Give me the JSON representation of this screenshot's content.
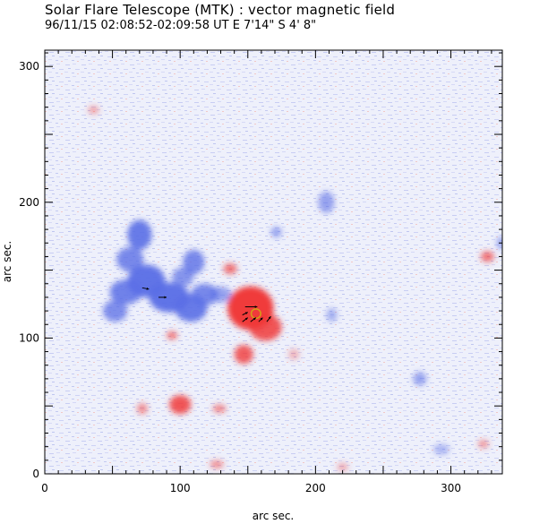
{
  "header": {
    "title": "Solar Flare Telescope (MTK) : vector magnetic field",
    "subtitle": "96/11/15   02:08:52-02:09:58 UT     E 7'14\"   S 4' 8\""
  },
  "chart_data": {
    "type": "heatmap",
    "title": "Solar Flare Telescope (MTK) : vector magnetic field",
    "subtitle": "96/11/15   02:08:52-02:09:58 UT     E 7'14\"   S 4' 8\"",
    "xlabel": "arc sec.",
    "ylabel": "arc sec.",
    "xlim": [
      0,
      338
    ],
    "ylim": [
      0,
      312
    ],
    "x_ticks": [
      0,
      100,
      200,
      300
    ],
    "y_ticks": [
      0,
      100,
      200,
      300
    ],
    "x_tick_labels": [
      "0",
      "100",
      "200",
      "300"
    ],
    "y_tick_labels": [
      "0",
      "100",
      "200",
      "300"
    ],
    "colors": {
      "negative_polarity": "#5a6ee6",
      "positive_polarity": "#f03a3a",
      "background_noise": "#c9cff2",
      "vector_arrow": "#000000",
      "contour": "#d4a017"
    },
    "polarity_regions": [
      {
        "polarity": "negative",
        "x": 70,
        "y": 176,
        "rx": 9,
        "ry": 11,
        "strength": 0.9
      },
      {
        "polarity": "negative",
        "x": 63,
        "y": 158,
        "rx": 10,
        "ry": 9,
        "strength": 0.8
      },
      {
        "polarity": "negative",
        "x": 75,
        "y": 142,
        "rx": 14,
        "ry": 12,
        "strength": 0.95
      },
      {
        "polarity": "negative",
        "x": 60,
        "y": 134,
        "rx": 12,
        "ry": 9,
        "strength": 0.85
      },
      {
        "polarity": "negative",
        "x": 52,
        "y": 120,
        "rx": 9,
        "ry": 8,
        "strength": 0.75
      },
      {
        "polarity": "negative",
        "x": 92,
        "y": 130,
        "rx": 15,
        "ry": 11,
        "strength": 0.95
      },
      {
        "polarity": "negative",
        "x": 108,
        "y": 122,
        "rx": 12,
        "ry": 10,
        "strength": 0.9
      },
      {
        "polarity": "negative",
        "x": 118,
        "y": 132,
        "rx": 10,
        "ry": 8,
        "strength": 0.8
      },
      {
        "polarity": "negative",
        "x": 110,
        "y": 156,
        "rx": 8,
        "ry": 9,
        "strength": 0.8
      },
      {
        "polarity": "negative",
        "x": 102,
        "y": 145,
        "rx": 8,
        "ry": 7,
        "strength": 0.7
      },
      {
        "polarity": "negative",
        "x": 130,
        "y": 132,
        "rx": 8,
        "ry": 6,
        "strength": 0.6
      },
      {
        "polarity": "negative",
        "x": 171,
        "y": 178,
        "rx": 4,
        "ry": 4,
        "strength": 0.6
      },
      {
        "polarity": "negative",
        "x": 208,
        "y": 200,
        "rx": 6,
        "ry": 8,
        "strength": 0.6
      },
      {
        "polarity": "negative",
        "x": 212,
        "y": 117,
        "rx": 4,
        "ry": 5,
        "strength": 0.5
      },
      {
        "polarity": "negative",
        "x": 277,
        "y": 70,
        "rx": 5,
        "ry": 5,
        "strength": 0.6
      },
      {
        "polarity": "negative",
        "x": 337,
        "y": 170,
        "rx": 3,
        "ry": 5,
        "strength": 0.6
      },
      {
        "polarity": "negative",
        "x": 293,
        "y": 18,
        "rx": 6,
        "ry": 4,
        "strength": 0.45
      },
      {
        "polarity": "positive",
        "x": 152,
        "y": 122,
        "rx": 17,
        "ry": 16,
        "strength": 1.0
      },
      {
        "polarity": "positive",
        "x": 163,
        "y": 108,
        "rx": 12,
        "ry": 10,
        "strength": 0.85
      },
      {
        "polarity": "positive",
        "x": 147,
        "y": 88,
        "rx": 7,
        "ry": 7,
        "strength": 0.8
      },
      {
        "polarity": "positive",
        "x": 137,
        "y": 151,
        "rx": 5,
        "ry": 4,
        "strength": 0.7
      },
      {
        "polarity": "positive",
        "x": 100,
        "y": 51,
        "rx": 8,
        "ry": 7,
        "strength": 0.85
      },
      {
        "polarity": "positive",
        "x": 94,
        "y": 102,
        "rx": 4,
        "ry": 3,
        "strength": 0.7
      },
      {
        "polarity": "positive",
        "x": 129,
        "y": 48,
        "rx": 5,
        "ry": 3,
        "strength": 0.6
      },
      {
        "polarity": "positive",
        "x": 72,
        "y": 48,
        "rx": 4,
        "ry": 4,
        "strength": 0.55
      },
      {
        "polarity": "positive",
        "x": 327,
        "y": 160,
        "rx": 5,
        "ry": 4,
        "strength": 0.7
      },
      {
        "polarity": "positive",
        "x": 127,
        "y": 7,
        "rx": 5,
        "ry": 3,
        "strength": 0.55
      },
      {
        "polarity": "positive",
        "x": 36,
        "y": 268,
        "rx": 4,
        "ry": 3,
        "strength": 0.45
      },
      {
        "polarity": "positive",
        "x": 324,
        "y": 22,
        "rx": 4,
        "ry": 3,
        "strength": 0.5
      },
      {
        "polarity": "positive",
        "x": 184,
        "y": 88,
        "rx": 4,
        "ry": 4,
        "strength": 0.35
      },
      {
        "polarity": "positive",
        "x": 220,
        "y": 5,
        "rx": 4,
        "ry": 3,
        "strength": 0.4
      }
    ],
    "vectors": [
      {
        "x": 148,
        "y": 123,
        "dx": 9,
        "dy": 0
      },
      {
        "x": 146,
        "y": 112,
        "dx": 4,
        "dy": 3
      },
      {
        "x": 152,
        "y": 112,
        "dx": 4,
        "dy": 3
      },
      {
        "x": 158,
        "y": 112,
        "dx": 3,
        "dy": 3
      },
      {
        "x": 164,
        "y": 112,
        "dx": 3,
        "dy": 4
      },
      {
        "x": 146,
        "y": 117,
        "dx": 4,
        "dy": 2
      },
      {
        "x": 72,
        "y": 137,
        "dx": 5,
        "dy": -1
      },
      {
        "x": 84,
        "y": 130,
        "dx": 6,
        "dy": 0
      }
    ],
    "contours": [
      {
        "x": 156,
        "y": 118,
        "r": 3.5
      }
    ]
  }
}
